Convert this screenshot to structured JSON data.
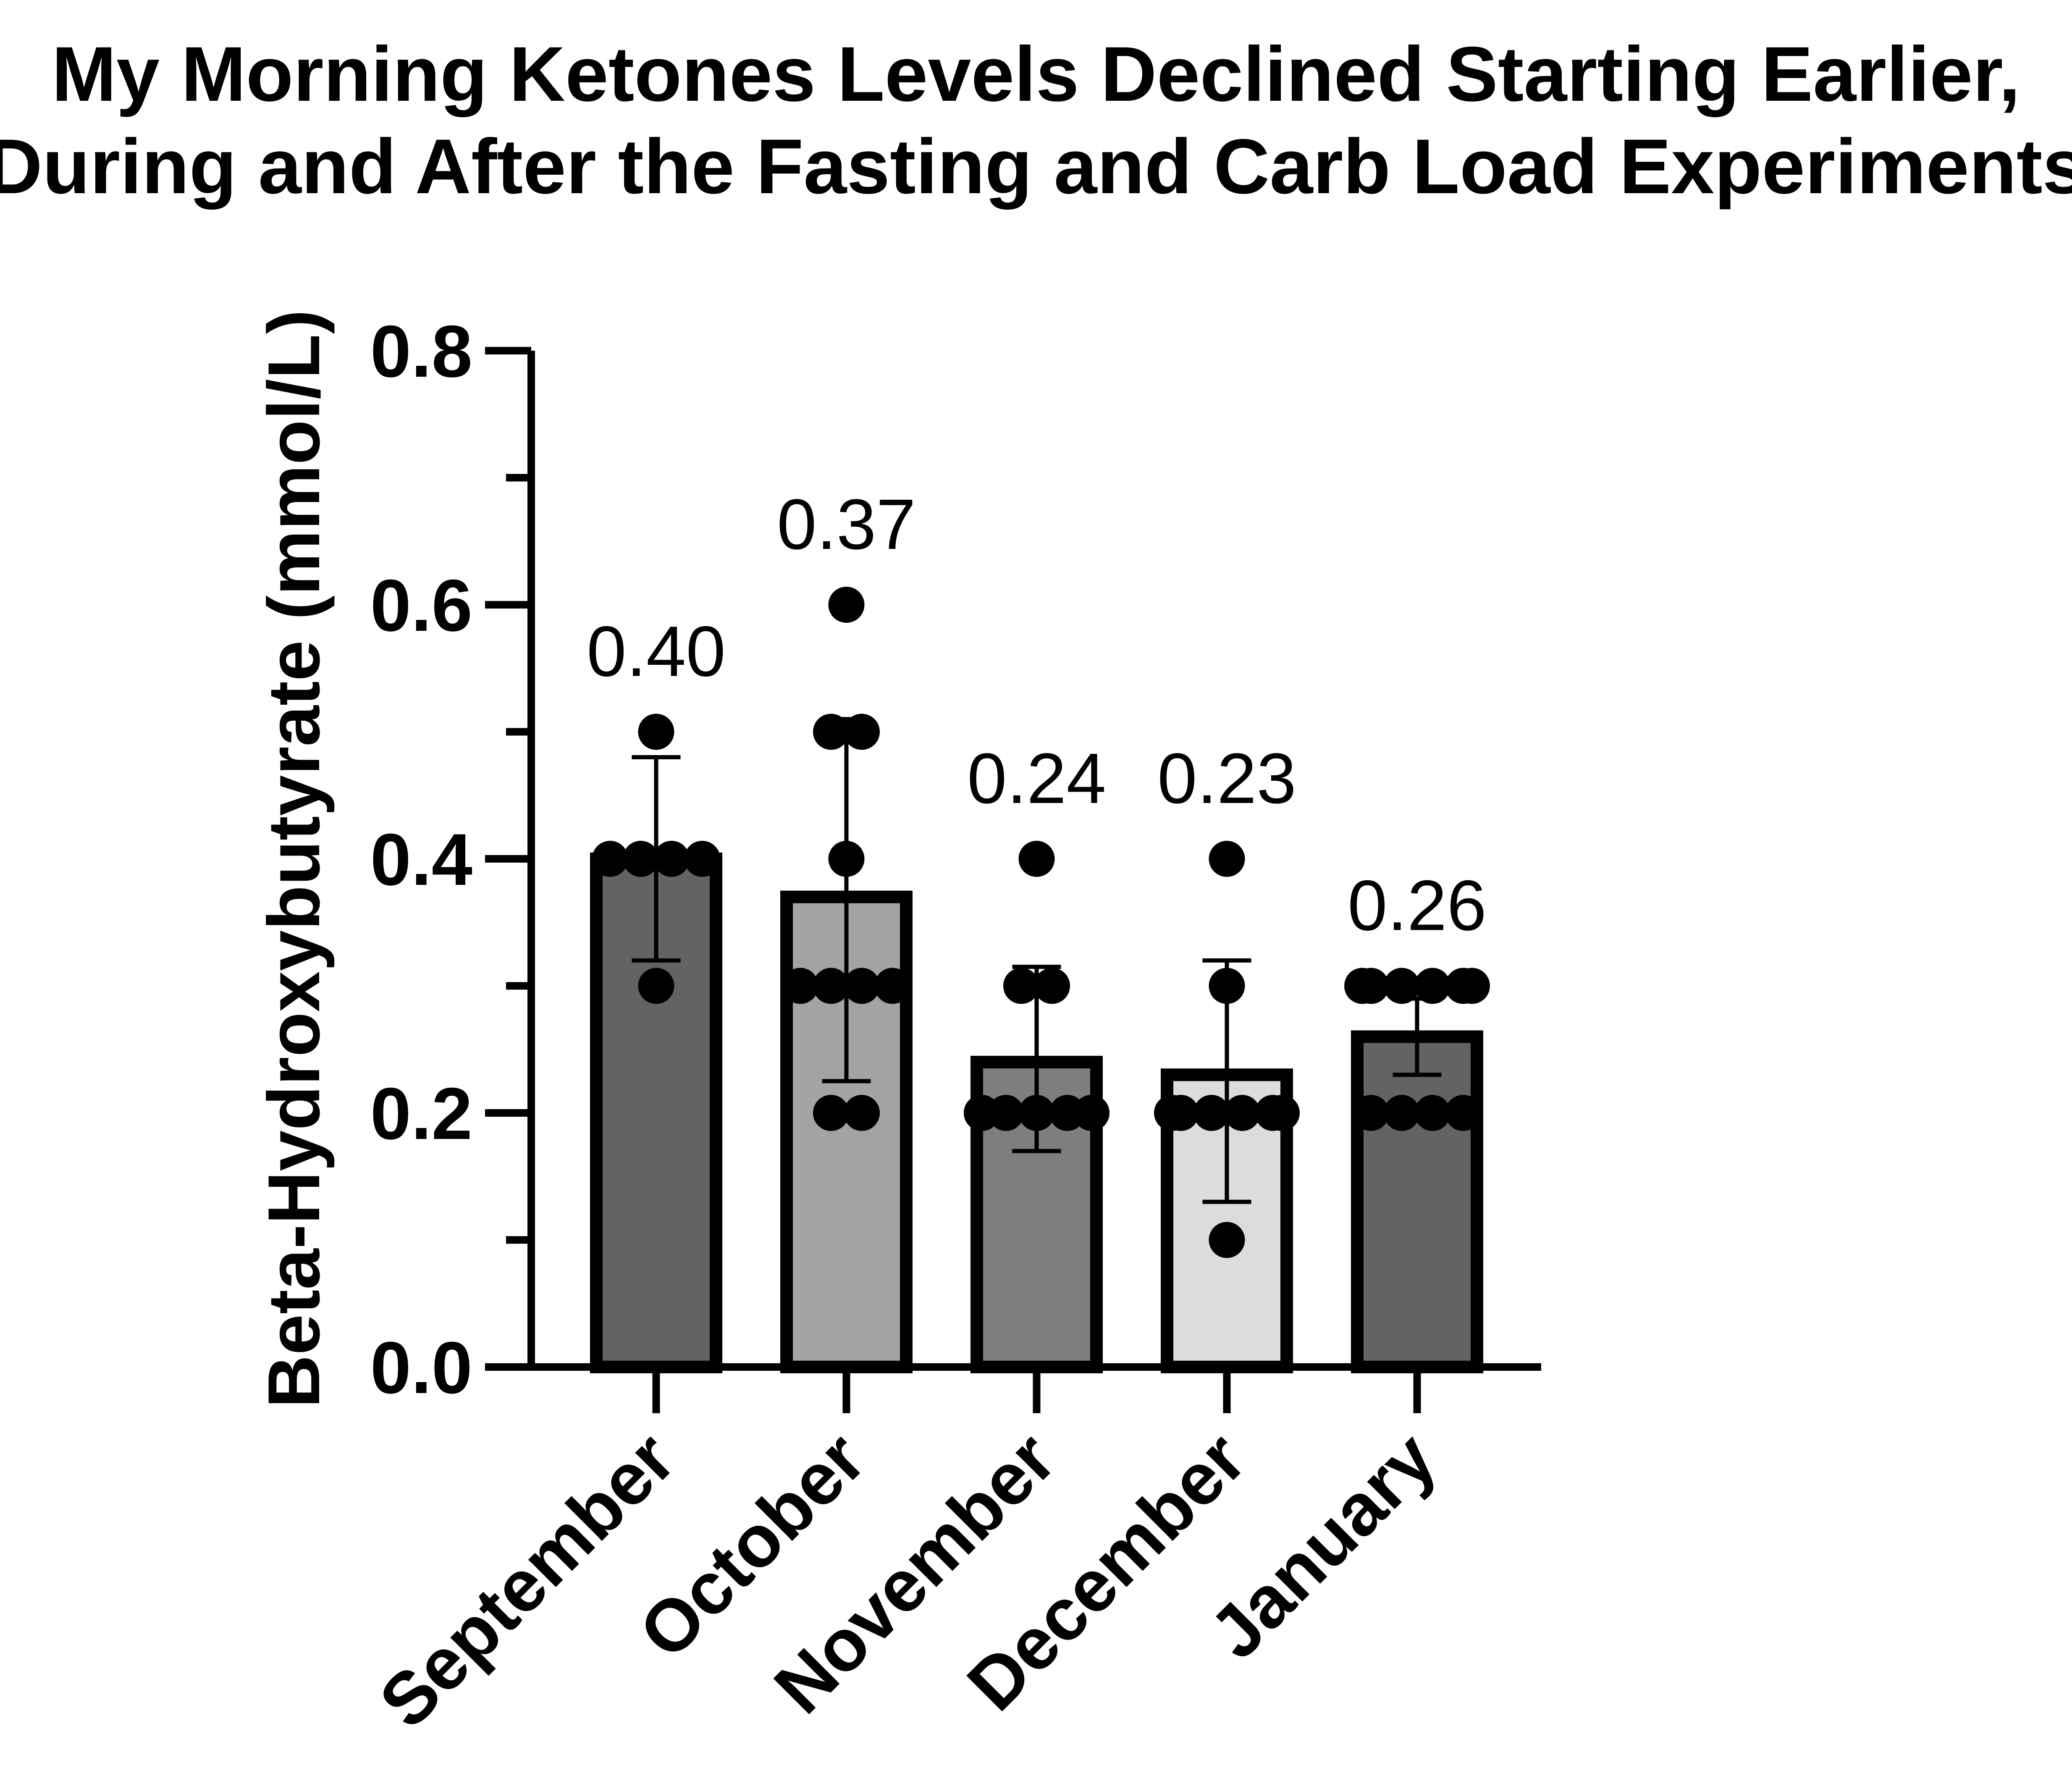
{
  "chart_data": {
    "type": "bar",
    "title_lines": [
      "My Morning Ketones Levels Declined Starting Earlier,",
      "During and After the Fasting and Carb Load Experiments"
    ],
    "xlabel": "",
    "ylabel": "Beta-Hydroxybutyrate (mmol/L)",
    "ylim": [
      0,
      0.8
    ],
    "yticks": [
      "0.0",
      "0.2",
      "0.4",
      "0.6",
      "0.8"
    ],
    "categories": [
      "September",
      "October",
      "November",
      "December",
      "January"
    ],
    "values": [
      0.4,
      0.37,
      0.24,
      0.23,
      0.26
    ],
    "value_labels": [
      "0.40",
      "0.37",
      "0.24",
      "0.23",
      "0.26"
    ],
    "error_bars": [
      {
        "low": 0.32,
        "high": 0.48
      },
      {
        "low": 0.225,
        "high": 0.51
      },
      {
        "low": 0.17,
        "high": 0.315
      },
      {
        "low": 0.13,
        "high": 0.32
      },
      {
        "low": 0.23,
        "high": 0.29
      }
    ],
    "points": [
      [
        0.5,
        0.4,
        0.4,
        0.4,
        0.4,
        0.3
      ],
      [
        0.6,
        0.5,
        0.5,
        0.4,
        0.3,
        0.3,
        0.3,
        0.3,
        0.2,
        0.2
      ],
      [
        0.4,
        0.3,
        0.3,
        0.2,
        0.2,
        0.2,
        0.2,
        0.2,
        0.2,
        0.2
      ],
      [
        0.4,
        0.3,
        0.2,
        0.2,
        0.2,
        0.2,
        0.2,
        0.2,
        0.1
      ],
      [
        0.3,
        0.3,
        0.3,
        0.3,
        0.3,
        0.3,
        0.2,
        0.2,
        0.2,
        0.2
      ]
    ],
    "bar_colors": [
      "#636363",
      "#a3a3a6",
      "#7e7e7e",
      "#dcdcdc",
      "#636363"
    ],
    "grid": false,
    "legend": "none"
  }
}
